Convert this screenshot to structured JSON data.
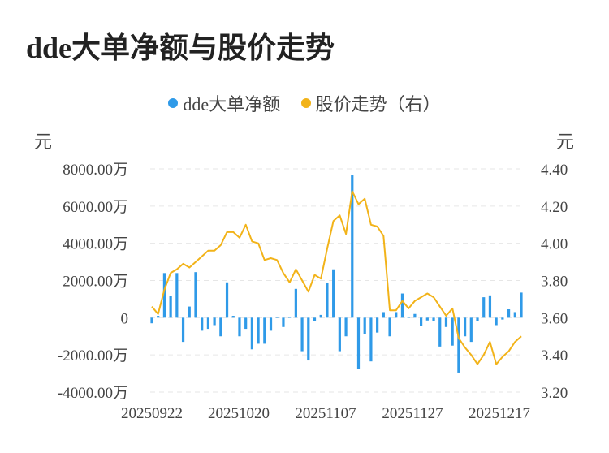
{
  "title": "dde大单净额与股价走势",
  "legend": {
    "bar_label": "dde大单净额",
    "line_label": "股价走势（右）",
    "bar_color": "#2f9ae8",
    "line_color": "#f2b319"
  },
  "units": {
    "left": "元",
    "right": "元"
  },
  "chart_data": {
    "type": "bar+line",
    "x_labels": [
      "20250922",
      "20251020",
      "20251107",
      "20251127",
      "20251217"
    ],
    "left_axis": {
      "ticks": [
        "8000.00万",
        "6000.00万",
        "4000.00万",
        "2000.00万",
        "0",
        "-2000.00万",
        "-4000.00万"
      ],
      "ylim": [
        -4000,
        8000
      ]
    },
    "right_axis": {
      "ticks": [
        "4.40",
        "4.20",
        "4.00",
        "3.80",
        "3.60",
        "3.40",
        "3.20"
      ],
      "ylim": [
        3.2,
        4.4
      ]
    },
    "grid": true,
    "series": [
      {
        "name": "dde大单净额",
        "type": "bar",
        "values": [
          -300,
          100,
          2400,
          1150,
          2400,
          -1300,
          600,
          2450,
          -700,
          -600,
          -400,
          -1000,
          1900,
          100,
          -1000,
          -600,
          -1700,
          -1400,
          -1400,
          -700,
          0,
          -500,
          0,
          1550,
          -1800,
          -2300,
          -200,
          150,
          1850,
          2600,
          -1800,
          -1000,
          7650,
          -2750,
          -900,
          -2350,
          -800,
          300,
          -1000,
          300,
          1300,
          0,
          200,
          -450,
          -150,
          -200,
          -1550,
          -500,
          -1500,
          -2950,
          -1000,
          -1300,
          -200,
          1100,
          1200,
          -400,
          -100,
          450,
          300,
          1350
        ]
      },
      {
        "name": "股价走势（右）",
        "type": "line",
        "values": [
          3.66,
          3.62,
          3.75,
          3.84,
          3.86,
          3.89,
          3.87,
          3.9,
          3.93,
          3.96,
          3.96,
          3.99,
          4.06,
          4.06,
          4.03,
          4.1,
          4.01,
          4.0,
          3.91,
          3.92,
          3.91,
          3.84,
          3.79,
          3.86,
          3.8,
          3.74,
          3.83,
          3.81,
          3.97,
          4.12,
          4.15,
          4.05,
          4.28,
          4.21,
          4.24,
          4.1,
          4.09,
          4.04,
          3.64,
          3.64,
          3.69,
          3.65,
          3.69,
          3.71,
          3.73,
          3.71,
          3.66,
          3.61,
          3.65,
          3.49,
          3.44,
          3.4,
          3.35,
          3.4,
          3.47,
          3.35,
          3.39,
          3.42,
          3.47,
          3.5
        ]
      }
    ]
  }
}
